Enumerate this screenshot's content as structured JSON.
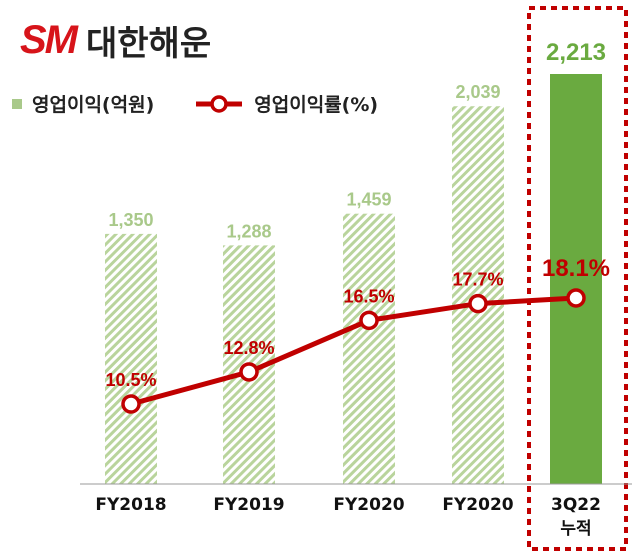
{
  "logo": {
    "mark": "SM",
    "name": "대한해운"
  },
  "legend": {
    "bar_label": "영업이익(억원)",
    "line_label": "영업이익률(%)"
  },
  "colors": {
    "bar": "#a9c98a",
    "highlight_bar": "#6aaa40",
    "line": "#c00000",
    "bar_label": "#a9c98a",
    "highlight_label": "#6aaa40",
    "box": "#c00000"
  },
  "chart_data": {
    "type": "bar+line",
    "categories": [
      [
        "FY2018"
      ],
      [
        "FY2019"
      ],
      [
        "FY2020"
      ],
      [
        "FY2020"
      ],
      [
        "3Q22",
        "누적"
      ]
    ],
    "series": [
      {
        "name": "영업이익(억원)",
        "type": "bar",
        "values": [
          1350,
          1288,
          1459,
          2039,
          2213
        ],
        "labels": [
          "1,350",
          "1,288",
          "1,459",
          "2,039",
          "2,213"
        ]
      },
      {
        "name": "영업이익률(%)",
        "type": "line",
        "values": [
          10.5,
          12.8,
          16.5,
          17.7,
          18.1
        ],
        "labels": [
          "10.5%",
          "12.8%",
          "16.5%",
          "17.7%",
          "18.1%"
        ]
      }
    ],
    "highlight_index": 4,
    "bar_style": "hatched except highlighted",
    "grid": false,
    "legend_position": "top-left"
  }
}
